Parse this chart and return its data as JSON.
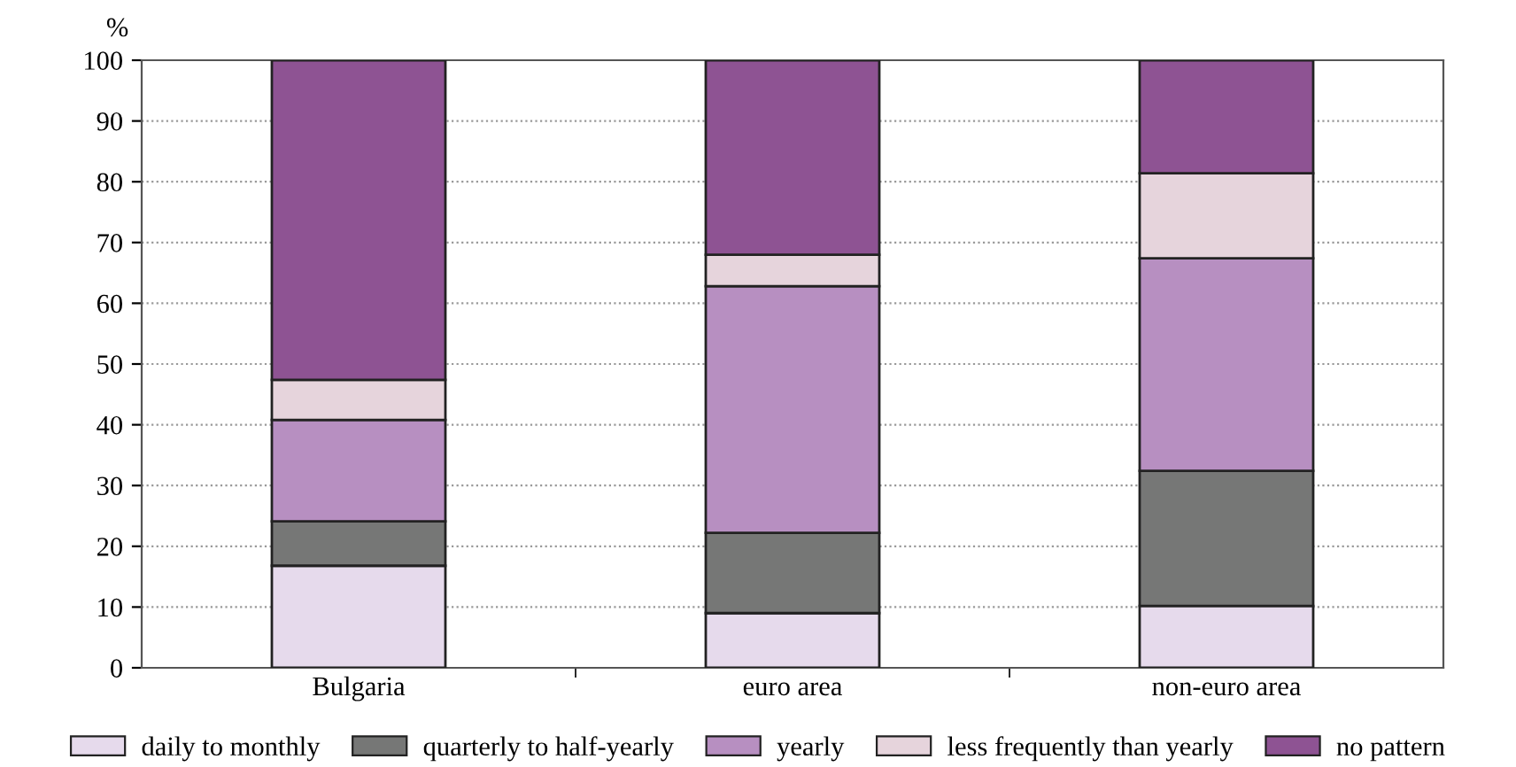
{
  "chart_data": {
    "type": "bar",
    "stacked": true,
    "ylabel": "%",
    "categories": [
      "Bulgaria",
      "euro area",
      "non-euro area"
    ],
    "series": [
      {
        "name": "daily to monthly",
        "color": "#e6daec",
        "values": [
          16.8,
          9.0,
          10.2
        ]
      },
      {
        "name": "quarterly to half-yearly",
        "color": "#767776",
        "values": [
          7.3,
          13.2,
          22.2
        ]
      },
      {
        "name": "yearly",
        "color": "#b78fc1",
        "values": [
          16.7,
          40.6,
          35.0
        ]
      },
      {
        "name": "less frequently than yearly",
        "color": "#e6d4dc",
        "values": [
          6.6,
          5.2,
          14.0
        ]
      },
      {
        "name": "no pattern",
        "color": "#8e5393",
        "values": [
          52.6,
          32.0,
          18.6
        ]
      }
    ],
    "ylim": [
      0,
      100
    ],
    "yticks": [
      0,
      10,
      20,
      30,
      40,
      50,
      60,
      70,
      80,
      90,
      100
    ],
    "grid": "y",
    "legend": "bottom"
  }
}
